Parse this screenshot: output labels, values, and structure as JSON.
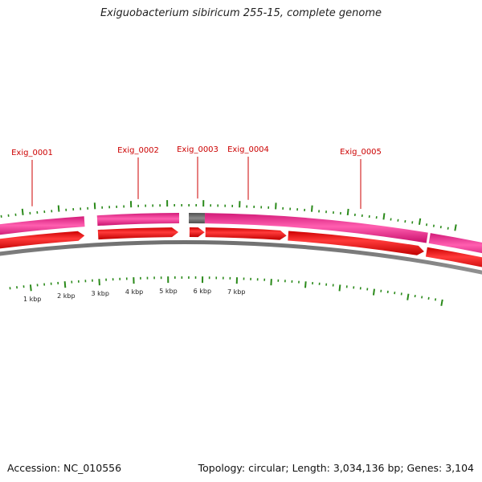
{
  "title": "Exiguobacterium sibiricum 255-15, complete genome",
  "footer": {
    "accession": "Accession: NC_010556",
    "summary": "Topology: circular; Length: 3,034,136 bp; Genes: 3,104"
  },
  "gene_labels": [
    "Exig_0001",
    "Exig_0002",
    "Exig_0003",
    "Exig_0004",
    "Exig_0005"
  ],
  "scale_labels": [
    "1 kbp",
    "2 kbp",
    "3 kbp",
    "4 kbp",
    "5 kbp",
    "6 kbp",
    "7 kbp"
  ],
  "colors": {
    "gene_label": "#cc0000",
    "feature_band": "#e8288a",
    "cds_arrow": "#ee0000",
    "backbone": "#888888",
    "ticks": "#2a8a1a",
    "unknown_block": "#666666"
  }
}
